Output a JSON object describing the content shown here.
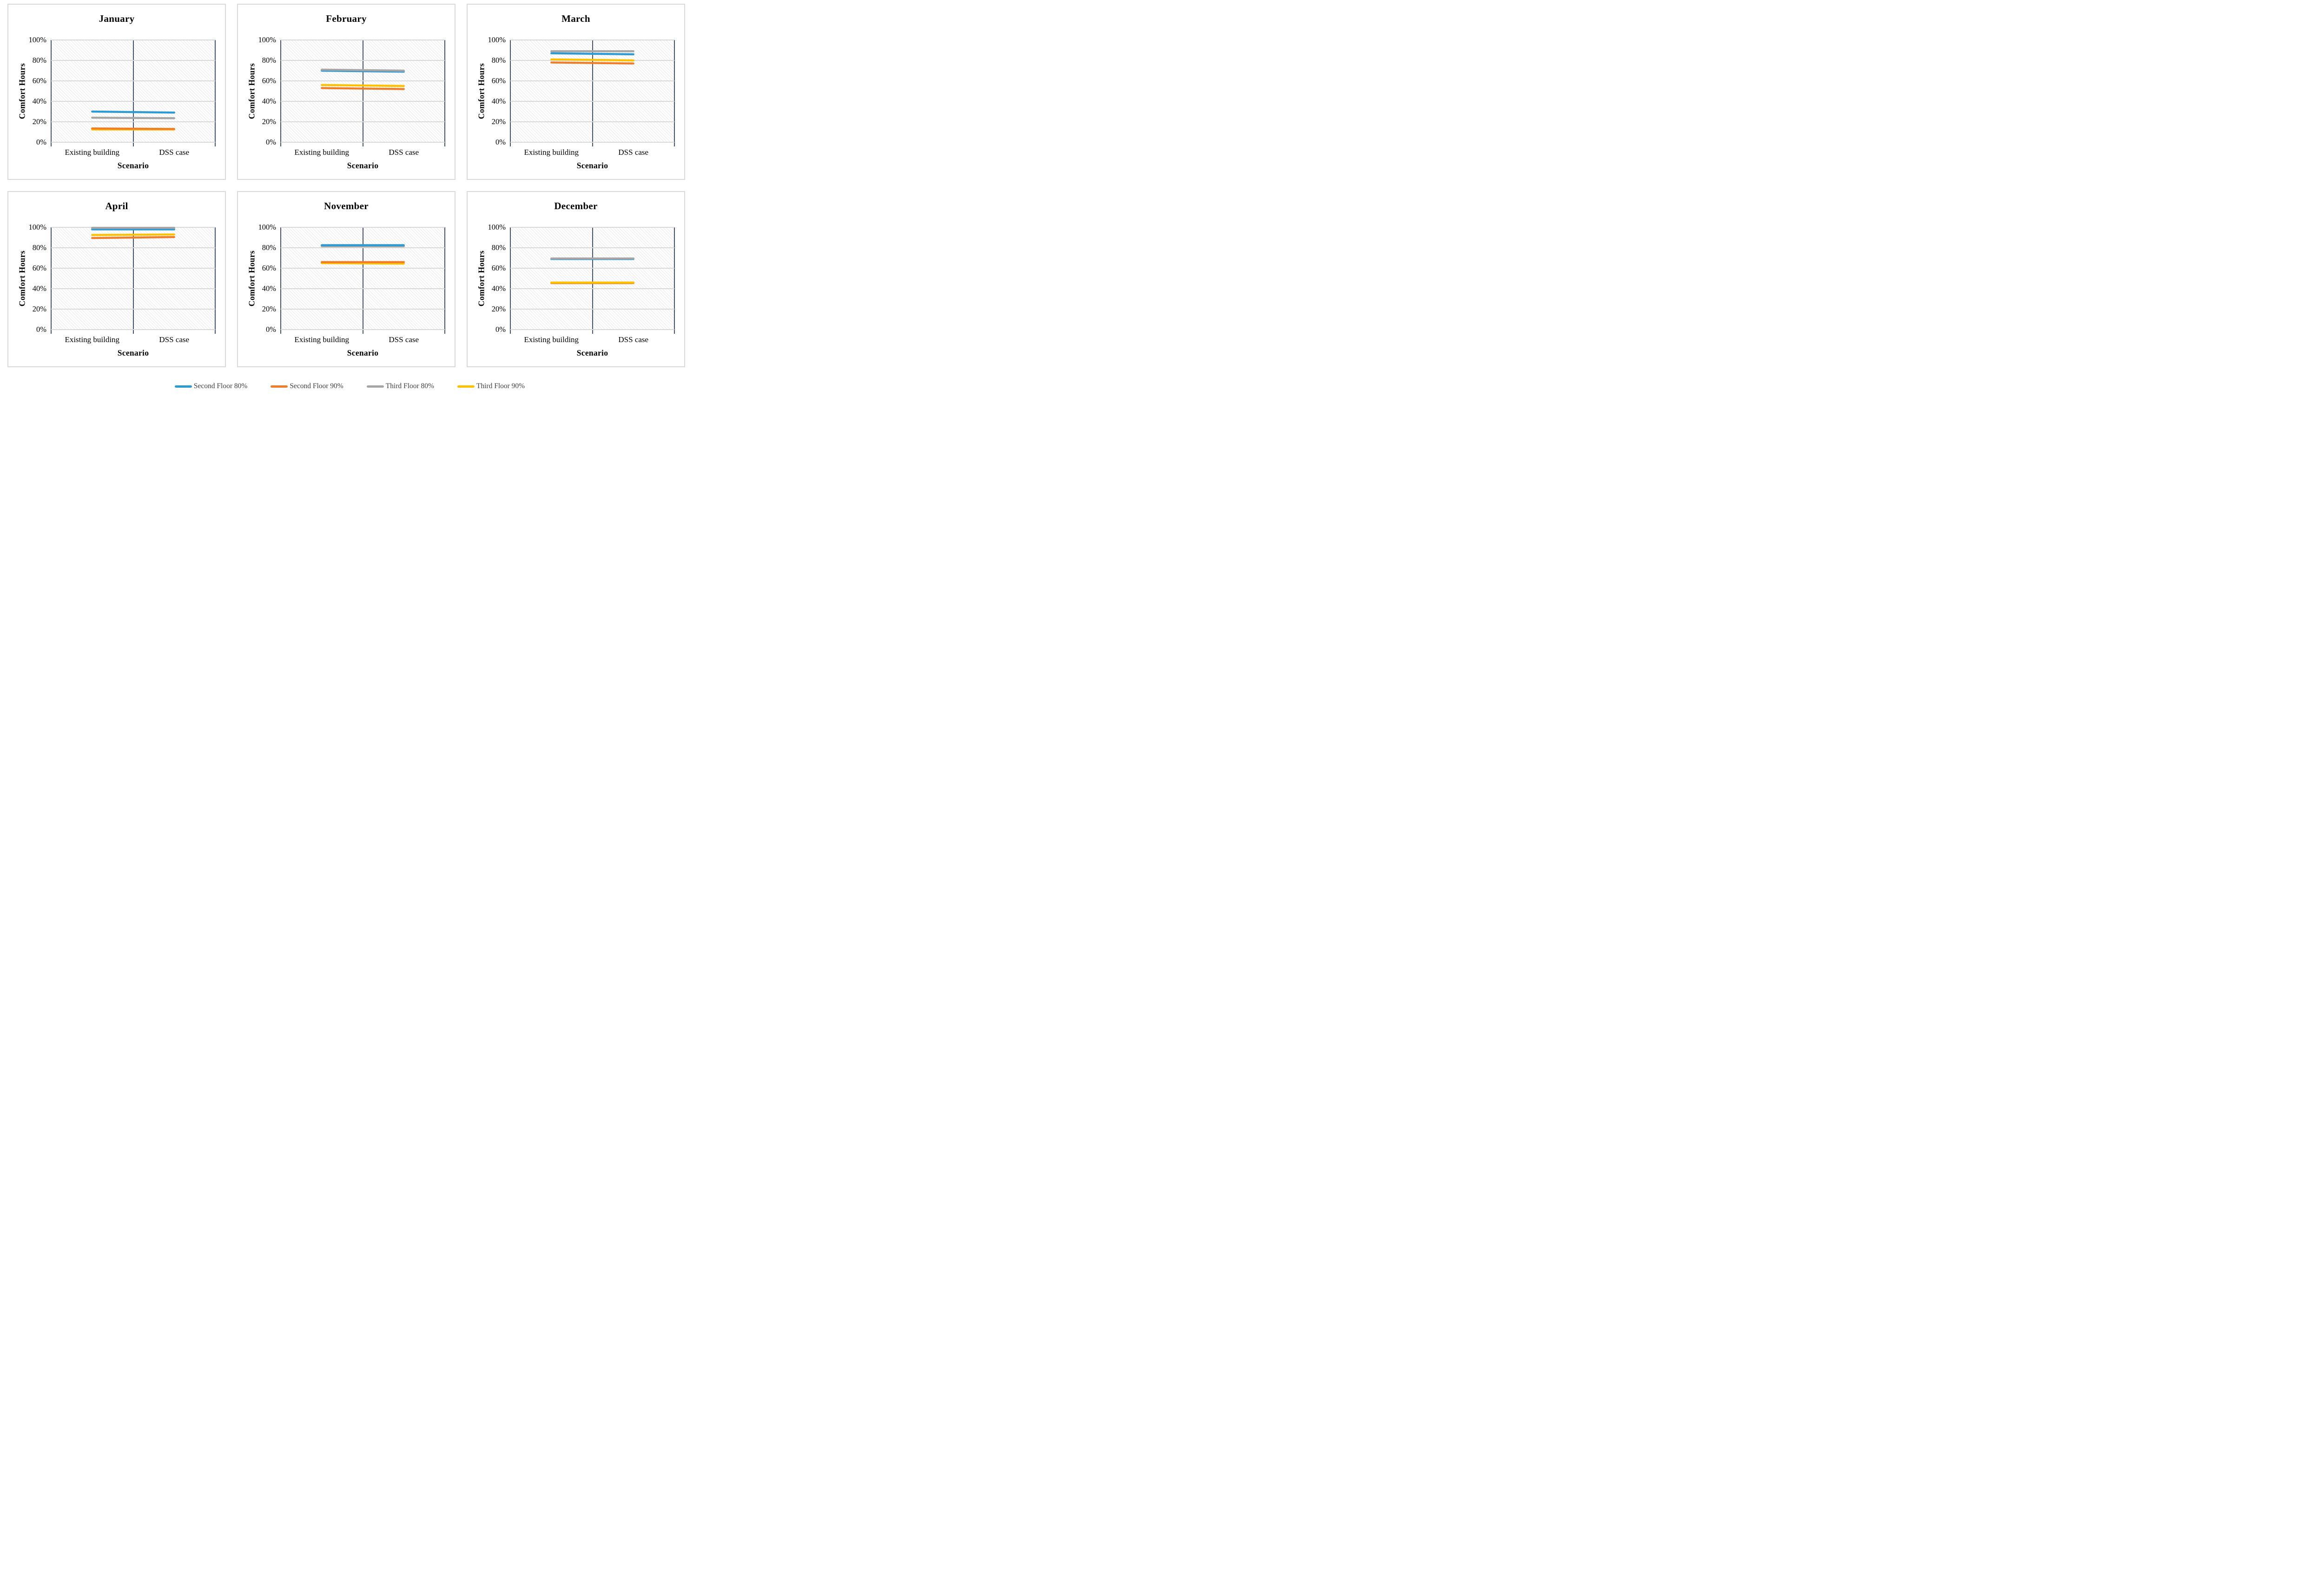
{
  "shared": {
    "y_axis_title": "Comfort Hours",
    "x_axis_title": "Scenario",
    "categories": [
      "Existing building",
      "DSS case"
    ],
    "y_ticks": [
      {
        "value": 0,
        "label": "0%"
      },
      {
        "value": 20,
        "label": "20%"
      },
      {
        "value": 40,
        "label": "40%"
      },
      {
        "value": 60,
        "label": "60%"
      },
      {
        "value": 80,
        "label": "80%"
      },
      {
        "value": 100,
        "label": "100%"
      }
    ],
    "ylim": [
      0,
      100
    ],
    "grid": "horizontal-light, vertical-dark-at-50-and-100",
    "legend_position": "bottom-center"
  },
  "legend": [
    {
      "name": "Second Floor 80%",
      "color": "#2E9AD4"
    },
    {
      "name": "Second Floor 90%",
      "color": "#F07D29"
    },
    {
      "name": "Third Floor 80%",
      "color": "#A6A6A6"
    },
    {
      "name": "Third Floor 90%",
      "color": "#FFC000"
    }
  ],
  "colors": {
    "axis_line": "#44546A",
    "gridline": "#D9D9D9",
    "panel_border": "#D9D9D9",
    "hatch": "#E9E9E9"
  },
  "chart_data": [
    {
      "type": "line",
      "title": "January",
      "series": [
        {
          "name": "Second Floor 80%",
          "values": [
            30,
            29
          ]
        },
        {
          "name": "Second Floor 90%",
          "values": [
            13.5,
            13
          ]
        },
        {
          "name": "Third Floor 80%",
          "values": [
            24,
            23.5
          ]
        },
        {
          "name": "Third Floor 90%",
          "values": [
            12.5,
            12.5
          ]
        }
      ]
    },
    {
      "type": "line",
      "title": "February",
      "series": [
        {
          "name": "Second Floor 80%",
          "values": [
            70,
            69
          ]
        },
        {
          "name": "Second Floor 90%",
          "values": [
            53,
            52
          ]
        },
        {
          "name": "Third Floor 80%",
          "values": [
            71,
            70
          ]
        },
        {
          "name": "Third Floor 90%",
          "values": [
            56,
            55
          ]
        }
      ]
    },
    {
      "type": "line",
      "title": "March",
      "series": [
        {
          "name": "Second Floor 80%",
          "values": [
            87,
            86
          ]
        },
        {
          "name": "Second Floor 90%",
          "values": [
            78,
            77
          ]
        },
        {
          "name": "Third Floor 80%",
          "values": [
            89,
            89
          ]
        },
        {
          "name": "Third Floor 90%",
          "values": [
            81,
            80
          ]
        }
      ]
    },
    {
      "type": "line",
      "title": "April",
      "series": [
        {
          "name": "Second Floor 80%",
          "values": [
            98,
            98
          ]
        },
        {
          "name": "Second Floor 90%",
          "values": [
            89.5,
            90.5
          ]
        },
        {
          "name": "Third Floor 80%",
          "values": [
            99.5,
            99.5
          ]
        },
        {
          "name": "Third Floor 90%",
          "values": [
            92.5,
            93
          ]
        }
      ]
    },
    {
      "type": "line",
      "title": "November",
      "series": [
        {
          "name": "Second Floor 80%",
          "values": [
            82.5,
            82.5
          ]
        },
        {
          "name": "Second Floor 90%",
          "values": [
            66,
            66
          ]
        },
        {
          "name": "Third Floor 80%",
          "values": [
            81.5,
            81.5
          ]
        },
        {
          "name": "Third Floor 90%",
          "values": [
            65,
            64.5
          ]
        }
      ]
    },
    {
      "type": "line",
      "title": "December",
      "series": [
        {
          "name": "Second Floor 80%",
          "values": [
            69,
            69
          ]
        },
        {
          "name": "Second Floor 90%",
          "values": [
            45.5,
            45.5
          ]
        },
        {
          "name": "Third Floor 80%",
          "values": [
            69.5,
            69.5
          ]
        },
        {
          "name": "Third Floor 90%",
          "values": [
            46,
            46
          ]
        }
      ]
    }
  ]
}
